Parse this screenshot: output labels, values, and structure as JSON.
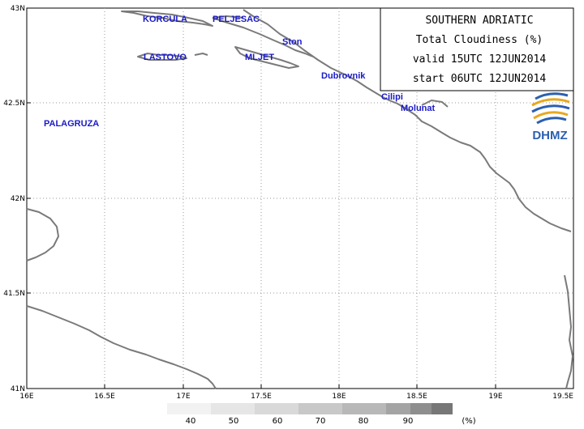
{
  "title_box": {
    "lines": [
      "SOUTHERN ADRIATIC",
      "Total Cloudiness (%)",
      "valid 15UTC 12JUN2014",
      "start 06UTC 12JUN2014"
    ]
  },
  "logo": {
    "text": "DHMZ",
    "icon": "dhmz-logo-icon"
  },
  "axes": {
    "lat_labels": [
      "43N",
      "42.5N",
      "42N",
      "41.5N",
      "41N"
    ],
    "lon_labels": [
      "16E",
      "16.5E",
      "17E",
      "17.5E",
      "18E",
      "18.5E",
      "19E",
      "19.5E"
    ],
    "lat_range": [
      41,
      43
    ],
    "lon_range": [
      16,
      19.5
    ],
    "grid": "dotted"
  },
  "places": [
    "KORCULA",
    "PELJESAC",
    "Ston",
    "LASTOVO",
    "MLJET",
    "Dubrovnik",
    "Cilipi",
    "Molunat",
    "PALAGRUZA"
  ],
  "colorscale": {
    "labels": [
      "40",
      "50",
      "60",
      "70",
      "80",
      "90"
    ],
    "unit": "(%)",
    "colors": [
      "#f2f2f2",
      "#e6e6e6",
      "#d9d9d9",
      "#c8c8c8",
      "#b8b8b8",
      "#a4a4a4",
      "#8e8e8e",
      "#777777"
    ]
  },
  "colors": {
    "coast": "#7a7a7a",
    "labels": "#1a1ac8"
  }
}
